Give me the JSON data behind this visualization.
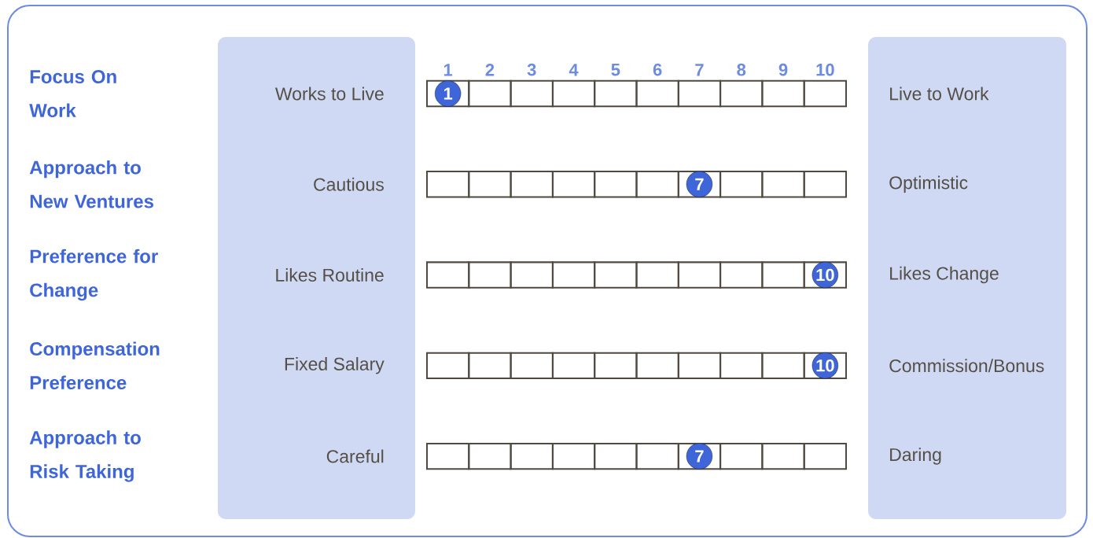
{
  "chart_data": {
    "type": "heatmap",
    "categories": [
      "1",
      "2",
      "3",
      "4",
      "5",
      "6",
      "7",
      "8",
      "9",
      "10"
    ],
    "y_categories": [
      "Works to Live",
      "Cautious",
      "Likes Routine",
      "Fixed Salary",
      "Careful"
    ],
    "y2_categories": [
      "Live to Work",
      "Optimistic",
      "Likes Change",
      "Commission/Bonus",
      "Daring"
    ],
    "annotations": [
      "Focus On Work",
      "Approach to New Ventures",
      "Preference for Change",
      "Compensation Preference",
      "Approach to Risk Taking"
    ],
    "cells": [
      [
        1,
        null,
        null,
        null,
        null,
        null,
        null,
        null,
        null,
        null
      ],
      [
        null,
        null,
        null,
        null,
        null,
        null,
        7,
        null,
        null,
        null
      ],
      [
        null,
        null,
        null,
        null,
        null,
        null,
        null,
        null,
        null,
        10
      ],
      [
        null,
        null,
        null,
        null,
        null,
        null,
        null,
        null,
        null,
        10
      ],
      [
        null,
        null,
        null,
        null,
        null,
        null,
        7,
        null,
        null,
        null
      ]
    ],
    "color": "#3f66d8",
    "data_labels": true
  }
}
